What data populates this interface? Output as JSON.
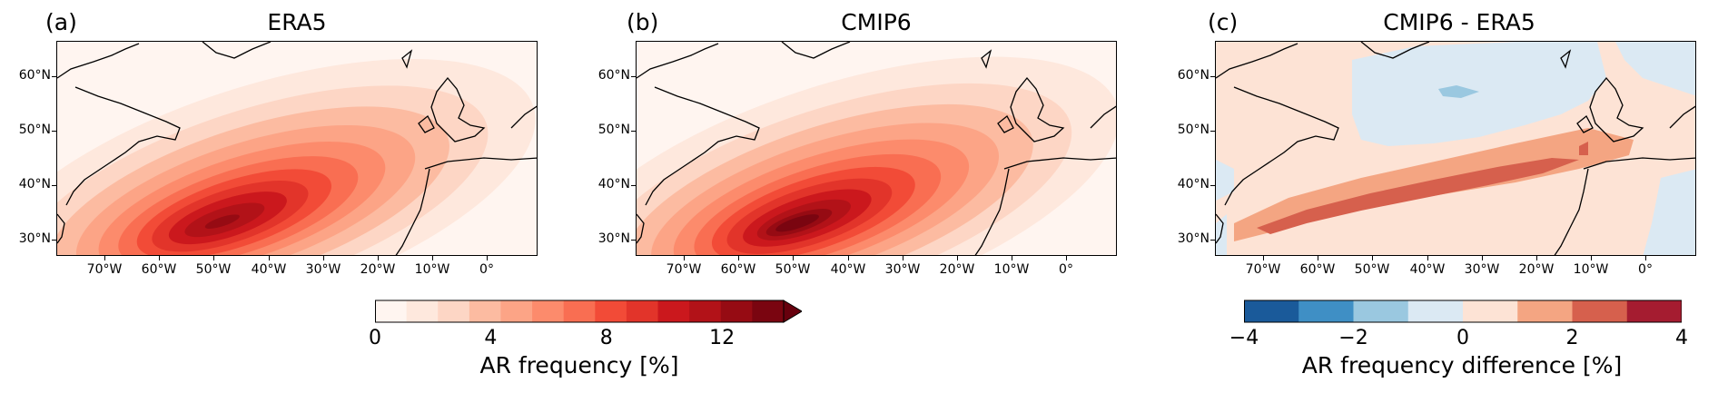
{
  "panels": [
    {
      "tag": "(a)",
      "title": "ERA5"
    },
    {
      "tag": "(b)",
      "title": "CMIP6"
    },
    {
      "tag": "(c)",
      "title": "CMIP6 - ERA5"
    }
  ],
  "lat_labels": [
    "60°N",
    "50°N",
    "40°N",
    "30°N"
  ],
  "lon_labels": [
    "70°W",
    "60°W",
    "50°W",
    "40°W",
    "30°W",
    "20°W",
    "10°W",
    "0°"
  ],
  "colorbar_freq": {
    "title": "AR frequency [%]",
    "tick_labels": [
      "0",
      "4",
      "8",
      "12"
    ],
    "colors": [
      "#fff5f0",
      "#fee8dd",
      "#fdd6c5",
      "#fcbba1",
      "#fca486",
      "#fc8b6c",
      "#f96e52",
      "#f24b37",
      "#e2342a",
      "#cb181d",
      "#b21218",
      "#960b13",
      "#7a0510"
    ]
  },
  "colorbar_diff": {
    "title": "AR frequency difference [%]",
    "tick_labels": [
      "−4",
      "−2",
      "0",
      "2",
      "4"
    ],
    "colors": [
      "#1a5a9a",
      "#3f8fc5",
      "#9ac8e0",
      "#dbe9f3",
      "#fde3d5",
      "#f4a582",
      "#d6604d",
      "#a51c30"
    ]
  }
}
